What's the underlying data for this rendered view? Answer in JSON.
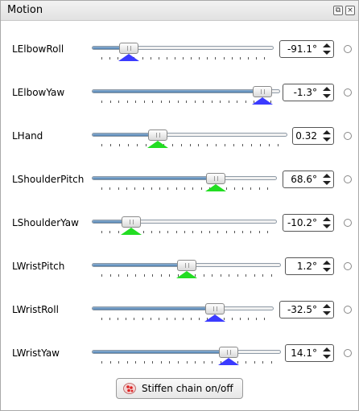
{
  "panel": {
    "title": "Motion",
    "float_icon": "float-icon",
    "close_icon": "close-icon"
  },
  "joints": [
    {
      "name": "LElbowRoll",
      "value": "-91.1°",
      "slider_fraction": 0.17,
      "marker_color": "#3b3bff"
    },
    {
      "name": "LElbowYaw",
      "value": "-1.3°",
      "slider_fraction": 0.95,
      "marker_color": "#3b3bff"
    },
    {
      "name": "LHand",
      "value": "0.32",
      "slider_fraction": 0.32,
      "marker_color": "#22dd22"
    },
    {
      "name": "LShoulderPitch",
      "value": "68.6°",
      "slider_fraction": 0.69,
      "marker_color": "#22dd22"
    },
    {
      "name": "LShoulderYaw",
      "value": "-10.2°",
      "slider_fraction": 0.18,
      "marker_color": "#22dd22"
    },
    {
      "name": "LWristPitch",
      "value": "1.2°",
      "slider_fraction": 0.5,
      "marker_color": "#22dd22"
    },
    {
      "name": "LWristRoll",
      "value": "-32.5°",
      "slider_fraction": 0.7,
      "marker_color": "#3b3bff"
    },
    {
      "name": "LWristYaw",
      "value": "14.1°",
      "slider_fraction": 0.75,
      "marker_color": "#3b3bff"
    }
  ],
  "stiffen_button": {
    "label": "Stiffen chain on/off",
    "icon": "stiffness-icon"
  }
}
